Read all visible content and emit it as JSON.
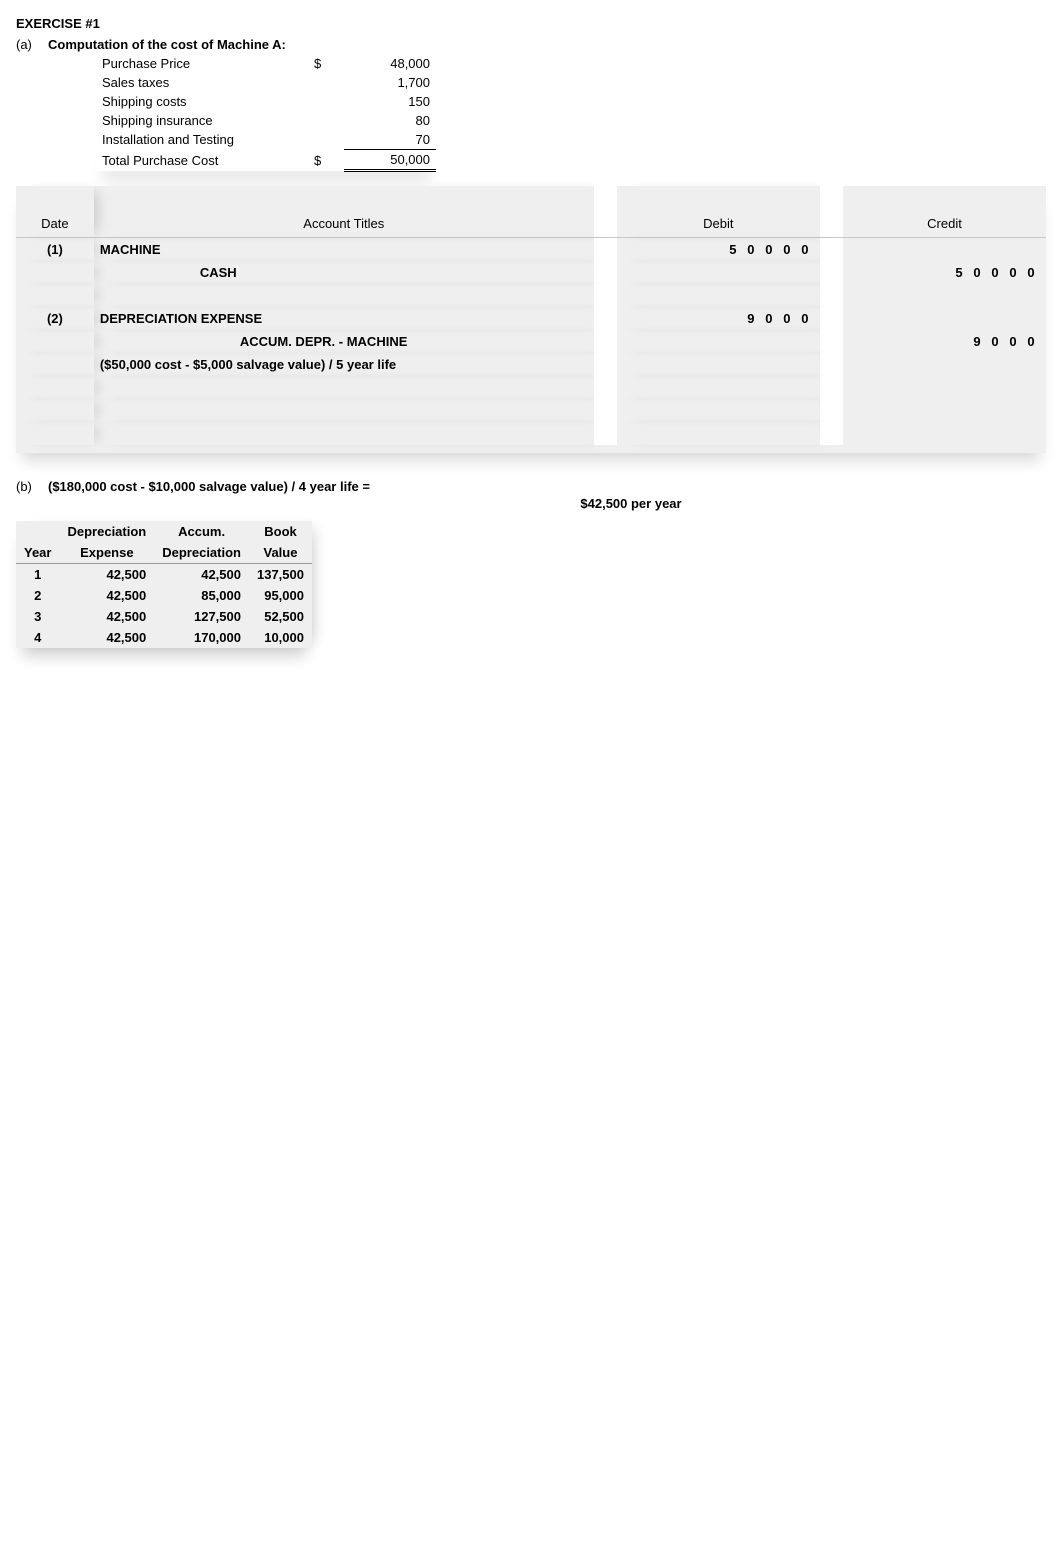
{
  "exercise_title": "EXERCISE #1",
  "part_a": {
    "letter": "(a)",
    "heading": "Computation of the cost of Machine A:",
    "rows": [
      {
        "label": "Purchase Price",
        "sym": "$",
        "value": "48,000"
      },
      {
        "label": "Sales taxes",
        "sym": "",
        "value": "1,700"
      },
      {
        "label": "Shipping costs",
        "sym": "",
        "value": "150"
      },
      {
        "label": "Shipping insurance",
        "sym": "",
        "value": "80"
      },
      {
        "label": "Installation and Testing",
        "sym": "",
        "value": "70"
      },
      {
        "label": "Total Purchase Cost",
        "sym": "$",
        "value": "50,000"
      }
    ]
  },
  "journal": {
    "headers": {
      "date": "Date",
      "acct": "Account Titles",
      "debit": "Debit",
      "credit": "Credit"
    },
    "entries": [
      {
        "date": "(1)",
        "lines": [
          {
            "label": "MACHINE",
            "indent": 0,
            "debit": "50000",
            "credit": ""
          },
          {
            "label": "CASH",
            "indent": 1,
            "debit": "",
            "credit": "50000"
          }
        ]
      },
      {
        "date": "(2)",
        "lines": [
          {
            "label": "DEPRECIATION EXPENSE",
            "indent": 0,
            "debit": "9000",
            "credit": ""
          },
          {
            "label": "ACCUM. DEPR. - MACHINE",
            "indent": 2,
            "debit": "",
            "credit": "9000"
          },
          {
            "label": "($50,000 cost - $5,000 salvage value) / 5 year life",
            "indent": 0,
            "debit": "",
            "credit": ""
          }
        ]
      }
    ]
  },
  "part_b": {
    "letter": "(b)",
    "formula": "($180,000 cost - $10,000 salvage value) / 4 year life =",
    "result": "$42,500 per year",
    "schedule": {
      "headers": {
        "year": "Year",
        "dep1": "Depreciation",
        "dep2": "Expense",
        "acc1": "Accum.",
        "acc2": "Depreciation",
        "bv1": "Book",
        "bv2": "Value"
      },
      "rows": [
        {
          "year": "1",
          "dep": "42,500",
          "acc": "42,500",
          "bv": "137,500"
        },
        {
          "year": "2",
          "dep": "42,500",
          "acc": "85,000",
          "bv": "95,000"
        },
        {
          "year": "3",
          "dep": "42,500",
          "acc": "127,500",
          "bv": "52,500"
        },
        {
          "year": "4",
          "dep": "42,500",
          "acc": "170,000",
          "bv": "10,000"
        }
      ]
    }
  },
  "style": {
    "bg_ledger": "#efefef",
    "text": "#000000",
    "grid_border": "#c8c8c8"
  }
}
